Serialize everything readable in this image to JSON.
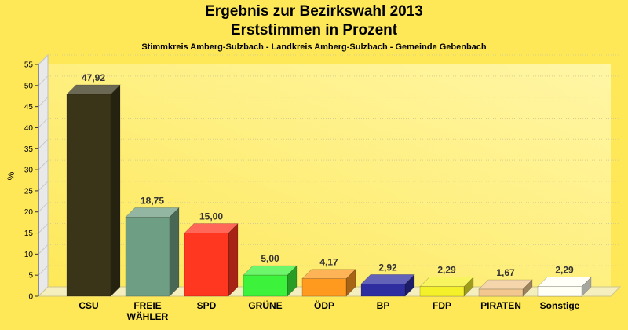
{
  "chart_data": {
    "type": "bar",
    "title": "Ergebnis zur Bezirkswahl 2013",
    "subtitle": "Erststimmen in Prozent",
    "caption": "Stimmkreis Amberg-Sulzbach - Landkreis Amberg-Sulzbach - Gemeinde Gebenbach",
    "xlabel": "",
    "ylabel": "%",
    "ylim": [
      0,
      55
    ],
    "yticks": [
      0,
      5,
      10,
      15,
      20,
      25,
      30,
      35,
      40,
      45,
      50,
      55
    ],
    "grid": true,
    "categories": [
      "CSU",
      "FREIE\nWÄHLER",
      "SPD",
      "GRÜNE",
      "ÖDP",
      "BP",
      "FDP",
      "PIRATEN",
      "Sonstige"
    ],
    "values": [
      47.92,
      18.75,
      15.0,
      5.0,
      4.17,
      2.92,
      2.29,
      1.67,
      2.29
    ],
    "value_labels": [
      "47,92",
      "18,75",
      "15,00",
      "5,00",
      "4,17",
      "2,92",
      "2,29",
      "1,67",
      "2,29"
    ],
    "colors": [
      "#3A3519",
      "#6E9E83",
      "#FF3620",
      "#3CF23A",
      "#FF9A1F",
      "#2E2EA0",
      "#F4F02A",
      "#F2C890",
      "#FFFFF6"
    ]
  }
}
